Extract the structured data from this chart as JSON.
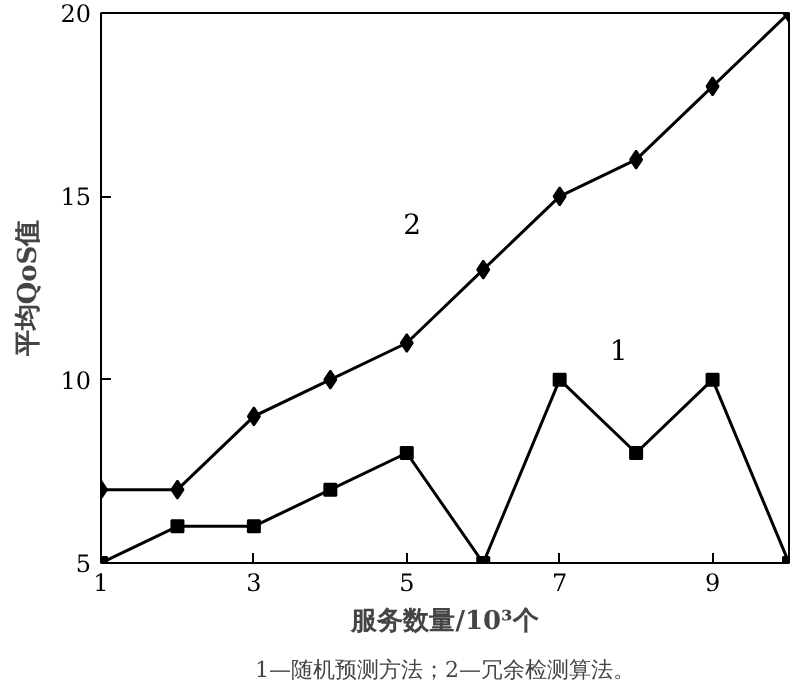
{
  "chart_data": {
    "type": "line",
    "xlabel": "服务数量/10³个",
    "ylabel": "平均QoS值",
    "x": [
      1,
      2,
      3,
      4,
      5,
      6,
      7,
      8,
      9,
      10
    ],
    "series": [
      {
        "name": "2",
        "color": "#000000",
        "marker": "diamond",
        "values": [
          7,
          7,
          9,
          10,
          11,
          13,
          15,
          16,
          18,
          20
        ]
      },
      {
        "name": "1",
        "color": "#000000",
        "marker": "square",
        "values": [
          5,
          6,
          6,
          7,
          8,
          5,
          10,
          8,
          10,
          5
        ]
      }
    ],
    "xlim": [
      1,
      10
    ],
    "xticks": [
      1,
      3,
      5,
      7,
      9
    ],
    "ylim": [
      5,
      20
    ],
    "yticks": [
      5,
      10,
      15,
      20
    ],
    "grid": false,
    "line_style": "solid",
    "annotations": [
      "1—随机预测方法；2—冗余检测算法。"
    ]
  }
}
